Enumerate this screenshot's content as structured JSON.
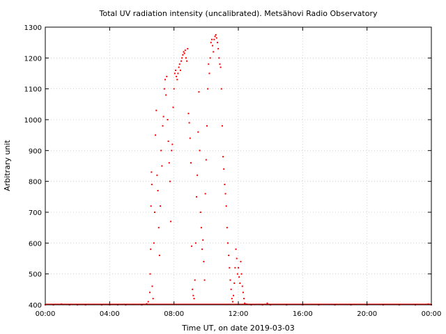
{
  "chart_data": {
    "type": "scatter",
    "title": "Total UV radiation intensity (uncalibrated). Metsähovi Radio Observatory",
    "xlabel": "Time UT, on date 2019-03-03",
    "ylabel": "Arbitrary unit",
    "xlim": [
      0,
      24
    ],
    "ylim": [
      400,
      1300
    ],
    "x_ticks": [
      0,
      4,
      8,
      12,
      16,
      20,
      24
    ],
    "x_tick_labels": [
      "00:00",
      "04:00",
      "08:00",
      "12:00",
      "16:00",
      "20:00",
      "00:00"
    ],
    "y_ticks": [
      400,
      500,
      600,
      700,
      800,
      900,
      1000,
      1100,
      1200,
      1300
    ],
    "y_tick_labels": [
      "400",
      "500",
      "600",
      "700",
      "800",
      "900",
      "1000",
      "1100",
      "1200",
      "1300"
    ],
    "grid": true,
    "marker_color": "#ff0000",
    "series": [
      {
        "points": [
          [
            0.0,
            400
          ],
          [
            0.5,
            400
          ],
          [
            1.0,
            402
          ],
          [
            1.5,
            400
          ],
          [
            2.0,
            400
          ],
          [
            2.5,
            400
          ],
          [
            3.0,
            401
          ],
          [
            3.5,
            400
          ],
          [
            4.0,
            400
          ],
          [
            4.5,
            400
          ],
          [
            5.0,
            400
          ],
          [
            5.5,
            401
          ],
          [
            6.0,
            400
          ],
          [
            6.3,
            403
          ],
          [
            6.4,
            410
          ],
          [
            6.5,
            440
          ],
          [
            6.52,
            500
          ],
          [
            6.55,
            580
          ],
          [
            6.57,
            720
          ],
          [
            6.6,
            830
          ],
          [
            6.62,
            790
          ],
          [
            6.65,
            460
          ],
          [
            6.7,
            420
          ],
          [
            6.75,
            600
          ],
          [
            6.8,
            700
          ],
          [
            6.85,
            950
          ],
          [
            6.9,
            1030
          ],
          [
            6.95,
            820
          ],
          [
            7.0,
            770
          ],
          [
            7.05,
            650
          ],
          [
            7.1,
            560
          ],
          [
            7.15,
            720
          ],
          [
            7.2,
            900
          ],
          [
            7.25,
            850
          ],
          [
            7.3,
            980
          ],
          [
            7.35,
            1010
          ],
          [
            7.4,
            1100
          ],
          [
            7.45,
            1130
          ],
          [
            7.5,
            1080
          ],
          [
            7.55,
            1140
          ],
          [
            7.6,
            1000
          ],
          [
            7.65,
            930
          ],
          [
            7.7,
            860
          ],
          [
            7.75,
            800
          ],
          [
            7.8,
            670
          ],
          [
            7.85,
            900
          ],
          [
            7.9,
            920
          ],
          [
            7.95,
            1040
          ],
          [
            8.0,
            1100
          ],
          [
            8.05,
            1150
          ],
          [
            8.1,
            1160
          ],
          [
            8.15,
            1140
          ],
          [
            8.2,
            1130
          ],
          [
            8.25,
            1150
          ],
          [
            8.3,
            1170
          ],
          [
            8.35,
            1180
          ],
          [
            8.4,
            1160
          ],
          [
            8.45,
            1190
          ],
          [
            8.5,
            1200
          ],
          [
            8.55,
            1210
          ],
          [
            8.6,
            1220
          ],
          [
            8.65,
            1215
          ],
          [
            8.7,
            1225
          ],
          [
            8.75,
            1200
          ],
          [
            8.8,
            1190
          ],
          [
            8.85,
            1230
          ],
          [
            8.9,
            1020
          ],
          [
            8.95,
            990
          ],
          [
            9.0,
            940
          ],
          [
            9.05,
            860
          ],
          [
            9.1,
            590
          ],
          [
            9.15,
            450
          ],
          [
            9.2,
            430
          ],
          [
            9.25,
            420
          ],
          [
            9.3,
            480
          ],
          [
            9.35,
            600
          ],
          [
            9.4,
            750
          ],
          [
            9.45,
            820
          ],
          [
            9.5,
            960
          ],
          [
            9.55,
            1090
          ],
          [
            9.6,
            900
          ],
          [
            9.65,
            700
          ],
          [
            9.7,
            650
          ],
          [
            9.75,
            580
          ],
          [
            9.8,
            610
          ],
          [
            9.85,
            540
          ],
          [
            9.9,
            480
          ],
          [
            9.95,
            760
          ],
          [
            10.0,
            870
          ],
          [
            10.05,
            980
          ],
          [
            10.1,
            1100
          ],
          [
            10.15,
            1180
          ],
          [
            10.2,
            1150
          ],
          [
            10.25,
            1200
          ],
          [
            10.3,
            1250
          ],
          [
            10.35,
            1260
          ],
          [
            10.4,
            1240
          ],
          [
            10.45,
            1220
          ],
          [
            10.5,
            1260
          ],
          [
            10.55,
            1270
          ],
          [
            10.6,
            1275
          ],
          [
            10.65,
            1265
          ],
          [
            10.7,
            1250
          ],
          [
            10.75,
            1230
          ],
          [
            10.8,
            1200
          ],
          [
            10.85,
            1180
          ],
          [
            10.9,
            1170
          ],
          [
            10.95,
            1100
          ],
          [
            11.0,
            980
          ],
          [
            11.05,
            880
          ],
          [
            11.1,
            840
          ],
          [
            11.15,
            790
          ],
          [
            11.2,
            760
          ],
          [
            11.25,
            720
          ],
          [
            11.3,
            650
          ],
          [
            11.35,
            600
          ],
          [
            11.4,
            560
          ],
          [
            11.45,
            520
          ],
          [
            11.5,
            480
          ],
          [
            11.55,
            450
          ],
          [
            11.6,
            420
          ],
          [
            11.65,
            410
          ],
          [
            11.7,
            430
          ],
          [
            11.75,
            470
          ],
          [
            11.8,
            520
          ],
          [
            11.85,
            580
          ],
          [
            11.9,
            550
          ],
          [
            11.95,
            500
          ],
          [
            12.0,
            520
          ],
          [
            12.05,
            490
          ],
          [
            12.1,
            470
          ],
          [
            12.15,
            540
          ],
          [
            12.2,
            500
          ],
          [
            12.25,
            460
          ],
          [
            12.3,
            440
          ],
          [
            12.35,
            420
          ],
          [
            12.4,
            405
          ],
          [
            12.5,
            402
          ],
          [
            12.8,
            400
          ],
          [
            13.0,
            401
          ],
          [
            13.5,
            400
          ],
          [
            13.8,
            405
          ],
          [
            14.0,
            400
          ],
          [
            15.0,
            400
          ],
          [
            16.0,
            400
          ],
          [
            17.0,
            400
          ],
          [
            18.0,
            400
          ],
          [
            19.0,
            400
          ],
          [
            20.0,
            400
          ],
          [
            21.0,
            400
          ],
          [
            22.0,
            400
          ],
          [
            23.0,
            400
          ],
          [
            23.8,
            402
          ],
          [
            24.0,
            400
          ]
        ]
      }
    ]
  }
}
